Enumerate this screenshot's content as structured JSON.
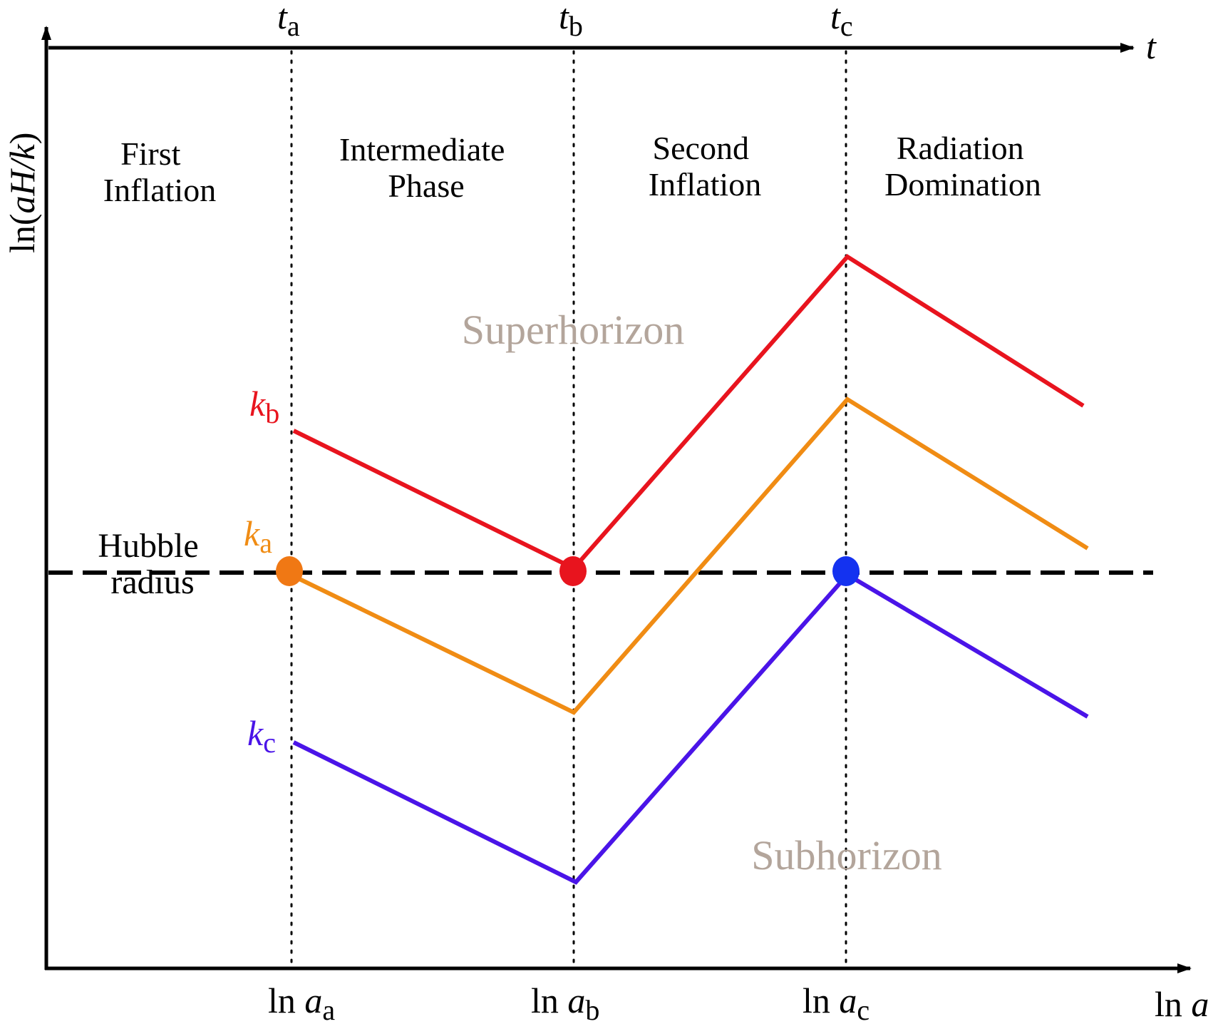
{
  "axes": {
    "y_label": {
      "pre": "ln(",
      "var": "aH/k",
      "post": ")"
    },
    "top_label": "t",
    "bottom_label": {
      "pre": "ln ",
      "var": "a"
    }
  },
  "top_ticks": [
    {
      "var": "t",
      "sub": "a"
    },
    {
      "var": "t",
      "sub": "b"
    },
    {
      "var": "t",
      "sub": "c"
    }
  ],
  "bottom_ticks": [
    {
      "pre": "ln ",
      "var": "a",
      "sub": "a"
    },
    {
      "pre": "ln ",
      "var": "a",
      "sub": "b"
    },
    {
      "pre": "ln ",
      "var": "a",
      "sub": "c"
    }
  ],
  "phases": [
    [
      "First",
      "Inflation"
    ],
    [
      "Intermediate",
      "Phase"
    ],
    [
      "Second",
      "Inflation"
    ],
    [
      "Radiation",
      "Domination"
    ]
  ],
  "regions": {
    "upper": "Superhorizon",
    "lower": "Subhorizon"
  },
  "hubble_label": [
    "Hubble",
    "radius"
  ],
  "curves": [
    {
      "var": "k",
      "sub": "b",
      "color": "#e8141e"
    },
    {
      "var": "k",
      "sub": "a",
      "color": "#f08c14"
    },
    {
      "var": "k",
      "sub": "c",
      "color": "#4a14e8"
    }
  ],
  "crossing_markers": [
    {
      "curve": "k_a",
      "at": "t_a",
      "color": "#f07814"
    },
    {
      "curve": "k_b",
      "at": "t_b",
      "color": "#e8141e"
    },
    {
      "curve": "k_c",
      "at": "t_c",
      "color": "#1432f0"
    }
  ]
}
